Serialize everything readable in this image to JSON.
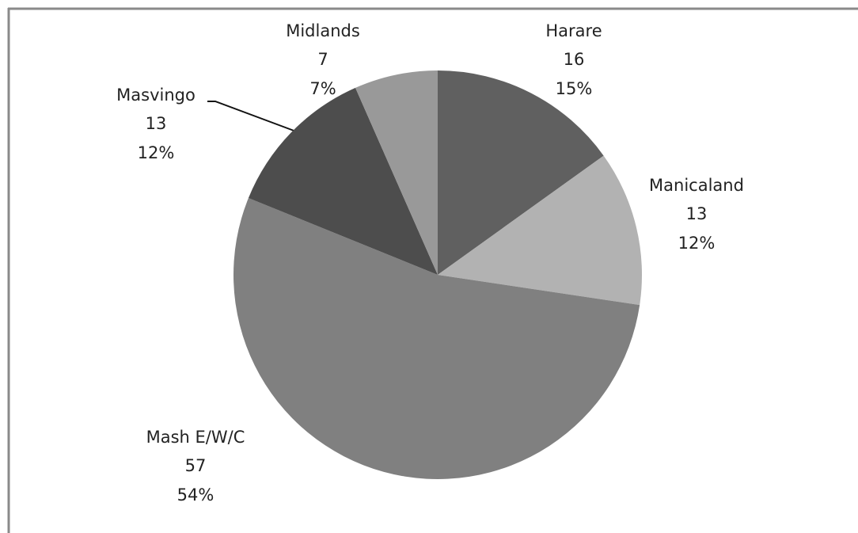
{
  "chart_data": {
    "type": "pie",
    "categories": [
      "Harare",
      "Manicaland",
      "Mash E/W/C",
      "Masvingo",
      "Midlands"
    ],
    "values": [
      16,
      13,
      57,
      13,
      7
    ],
    "percent_labels": [
      "15%",
      "12%",
      "54%",
      "12%",
      "7%"
    ],
    "colors": [
      "#606060",
      "#b2b2b2",
      "#808080",
      "#4d4d4d",
      "#999999"
    ]
  }
}
